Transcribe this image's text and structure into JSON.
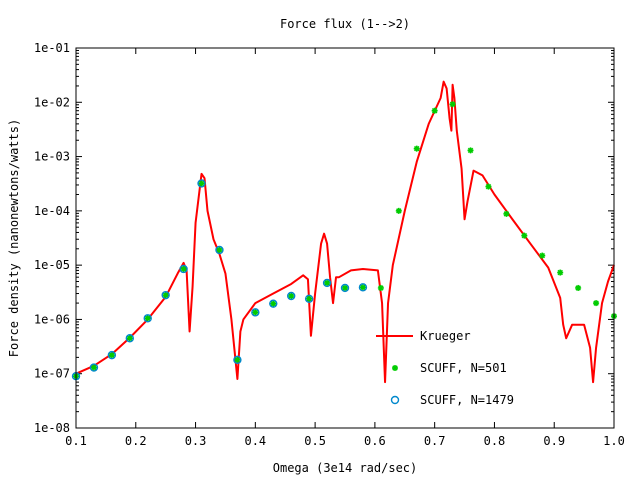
{
  "chart_data": {
    "type": "scatter",
    "title": "Force flux (1-->2)",
    "xlabel": "Omega (3e14 rad/sec)",
    "ylabel": "Force density (nanonewtons/watts)",
    "xlim": [
      0.1,
      1.0
    ],
    "ylim": [
      1e-08,
      0.1
    ],
    "yscale": "log",
    "grid": false,
    "legend_position": "bottom-right",
    "x_ticks": [
      "0.1",
      "0.2",
      "0.3",
      "0.4",
      "0.5",
      "0.6",
      "0.7",
      "0.8",
      "0.9",
      "1.0"
    ],
    "y_ticks": [
      "1e-08",
      "1e-07",
      "1e-06",
      "1e-05",
      "1e-04",
      "1e-03",
      "1e-02",
      "1e-01"
    ],
    "series": [
      {
        "name": "Krueger",
        "style": "line",
        "color": "#ff0000",
        "points": [
          [
            0.1,
            1e-07
          ],
          [
            0.13,
            1.4e-07
          ],
          [
            0.16,
            2.3e-07
          ],
          [
            0.19,
            4.6e-07
          ],
          [
            0.22,
            1e-06
          ],
          [
            0.25,
            2.6e-06
          ],
          [
            0.27,
            7e-06
          ],
          [
            0.28,
            1.1e-05
          ],
          [
            0.285,
            8e-06
          ],
          [
            0.29,
            6e-07
          ],
          [
            0.295,
            4e-06
          ],
          [
            0.3,
            6e-05
          ],
          [
            0.31,
            0.00048
          ],
          [
            0.315,
            0.0004
          ],
          [
            0.32,
            0.0001
          ],
          [
            0.33,
            3e-05
          ],
          [
            0.34,
            1.6e-05
          ],
          [
            0.35,
            7e-06
          ],
          [
            0.36,
            1e-06
          ],
          [
            0.37,
            8e-08
          ],
          [
            0.375,
            6e-07
          ],
          [
            0.38,
            1e-06
          ],
          [
            0.4,
            2e-06
          ],
          [
            0.43,
            3e-06
          ],
          [
            0.46,
            4.5e-06
          ],
          [
            0.48,
            6.5e-06
          ],
          [
            0.488,
            5.5e-06
          ],
          [
            0.493,
            5e-07
          ],
          [
            0.5,
            3e-06
          ],
          [
            0.51,
            2.5e-05
          ],
          [
            0.515,
            3.8e-05
          ],
          [
            0.52,
            2.5e-05
          ],
          [
            0.525,
            6e-06
          ],
          [
            0.53,
            2e-06
          ],
          [
            0.535,
            6e-06
          ],
          [
            0.54,
            6e-06
          ],
          [
            0.56,
            8e-06
          ],
          [
            0.58,
            8.5e-06
          ],
          [
            0.605,
            8e-06
          ],
          [
            0.612,
            2e-06
          ],
          [
            0.617,
            7e-08
          ],
          [
            0.622,
            2e-06
          ],
          [
            0.63,
            1e-05
          ],
          [
            0.65,
            0.0001
          ],
          [
            0.67,
            0.0008
          ],
          [
            0.69,
            0.004
          ],
          [
            0.71,
            0.012
          ],
          [
            0.715,
            0.024
          ],
          [
            0.72,
            0.018
          ],
          [
            0.725,
            0.005
          ],
          [
            0.728,
            0.003
          ],
          [
            0.73,
            0.021
          ],
          [
            0.733,
            0.012
          ],
          [
            0.737,
            0.003
          ],
          [
            0.745,
            0.0006
          ],
          [
            0.75,
            7e-05
          ],
          [
            0.755,
            0.00015
          ],
          [
            0.765,
            0.00055
          ],
          [
            0.78,
            0.00045
          ],
          [
            0.8,
            0.0002
          ],
          [
            0.83,
            7e-05
          ],
          [
            0.86,
            2.5e-05
          ],
          [
            0.89,
            9e-06
          ],
          [
            0.91,
            2.5e-06
          ],
          [
            0.915,
            8e-07
          ],
          [
            0.92,
            4.5e-07
          ],
          [
            0.93,
            8e-07
          ],
          [
            0.95,
            8e-07
          ],
          [
            0.96,
            3e-07
          ],
          [
            0.965,
            7e-08
          ],
          [
            0.97,
            3e-07
          ],
          [
            0.98,
            2e-06
          ],
          [
            0.99,
            5e-06
          ],
          [
            1.0,
            1e-05
          ]
        ]
      },
      {
        "name": "SCUFF, N=501",
        "style": "marker",
        "marker": "star",
        "color": "#00cc00",
        "points": [
          [
            0.1,
            9e-08
          ],
          [
            0.13,
            1.3e-07
          ],
          [
            0.16,
            2.2e-07
          ],
          [
            0.19,
            4.5e-07
          ],
          [
            0.22,
            1.05e-06
          ],
          [
            0.25,
            2.8e-06
          ],
          [
            0.28,
            8.5e-06
          ],
          [
            0.31,
            0.00032
          ],
          [
            0.34,
            1.9e-05
          ],
          [
            0.37,
            1.8e-07
          ],
          [
            0.4,
            1.35e-06
          ],
          [
            0.43,
            1.95e-06
          ],
          [
            0.46,
            2.7e-06
          ],
          [
            0.49,
            2.4e-06
          ],
          [
            0.52,
            4.7e-06
          ],
          [
            0.55,
            3.8e-06
          ],
          [
            0.58,
            3.9e-06
          ],
          [
            0.61,
            3.8e-06
          ],
          [
            0.64,
            0.0001
          ],
          [
            0.67,
            0.0014
          ],
          [
            0.7,
            0.007
          ],
          [
            0.73,
            0.0092
          ],
          [
            0.76,
            0.0013
          ],
          [
            0.79,
            0.00028
          ],
          [
            0.82,
            8.8e-05
          ],
          [
            0.85,
            3.5e-05
          ],
          [
            0.88,
            1.5e-05
          ],
          [
            0.91,
            7.3e-06
          ],
          [
            0.94,
            3.8e-06
          ],
          [
            0.97,
            2e-06
          ],
          [
            1.0,
            1.15e-06
          ]
        ]
      },
      {
        "name": "SCUFF, N=1479",
        "style": "marker",
        "marker": "circle",
        "color": "#0088cc",
        "points": [
          [
            0.1,
            9e-08
          ],
          [
            0.13,
            1.3e-07
          ],
          [
            0.16,
            2.2e-07
          ],
          [
            0.19,
            4.5e-07
          ],
          [
            0.22,
            1.05e-06
          ],
          [
            0.25,
            2.8e-06
          ],
          [
            0.28,
            8.5e-06
          ],
          [
            0.31,
            0.00032
          ],
          [
            0.34,
            1.9e-05
          ],
          [
            0.37,
            1.8e-07
          ],
          [
            0.4,
            1.35e-06
          ],
          [
            0.43,
            1.95e-06
          ],
          [
            0.46,
            2.7e-06
          ],
          [
            0.49,
            2.4e-06
          ],
          [
            0.52,
            4.7e-06
          ],
          [
            0.55,
            3.8e-06
          ],
          [
            0.58,
            3.9e-06
          ]
        ]
      }
    ]
  }
}
